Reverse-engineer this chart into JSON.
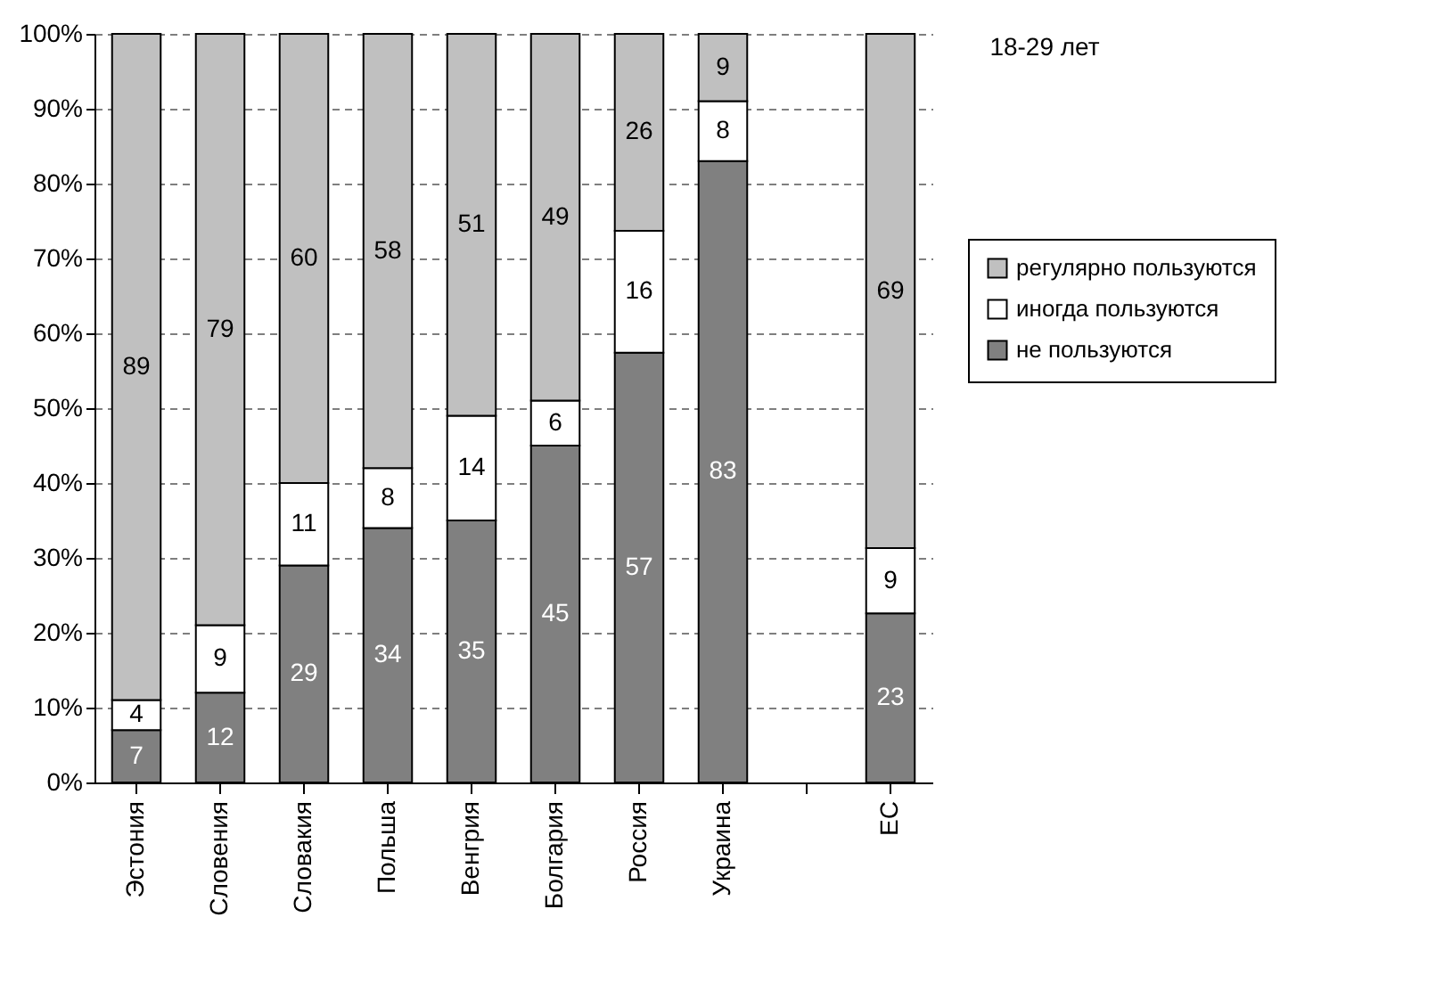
{
  "chart_data": {
    "type": "bar",
    "stacked": true,
    "title": "18-29 лет",
    "categories": [
      "Эстония",
      "Словения",
      "Словакия",
      "Польша",
      "Венгрия",
      "Болгария",
      "Россия",
      "Украина",
      null,
      "ЕС"
    ],
    "series": [
      {
        "name": "не пользуются",
        "color": "#808080",
        "values": [
          7,
          12,
          29,
          34,
          35,
          45,
          57.4,
          83,
          null,
          22.6
        ],
        "value_labels": [
          "7",
          "12",
          "29",
          "34",
          "35",
          "45",
          "57",
          "83",
          null,
          "23"
        ]
      },
      {
        "name": "иногда пользуются",
        "color": "#ffffff",
        "values": [
          4,
          9,
          11,
          8,
          14,
          6,
          16.3,
          8,
          null,
          8.7
        ],
        "value_labels": [
          "4",
          "9",
          "11",
          "8",
          "14",
          "6",
          "16",
          "8",
          null,
          "9"
        ]
      },
      {
        "name": "регулярно пользуются",
        "color": "#c0c0c0",
        "values": [
          89,
          79,
          60,
          58,
          51,
          49,
          26.3,
          9,
          null,
          68.7
        ],
        "value_labels": [
          "89",
          "79",
          "60",
          "58",
          "51",
          "49",
          "26",
          "9",
          null,
          "69"
        ]
      }
    ],
    "ylim": [
      0,
      100
    ],
    "yticks": [
      {
        "value": 0,
        "label": "0%"
      },
      {
        "value": 10,
        "label": "10%"
      },
      {
        "value": 20,
        "label": "20%"
      },
      {
        "value": 30,
        "label": "30%"
      },
      {
        "value": 40,
        "label": "40%"
      },
      {
        "value": 50,
        "label": "50%"
      },
      {
        "value": 60,
        "label": "60%"
      },
      {
        "value": 70,
        "label": "70%"
      },
      {
        "value": 80,
        "label": "80%"
      },
      {
        "value": 90,
        "label": "90%"
      },
      {
        "value": 100,
        "label": "100%"
      }
    ],
    "grid": "y",
    "legend": "right"
  }
}
